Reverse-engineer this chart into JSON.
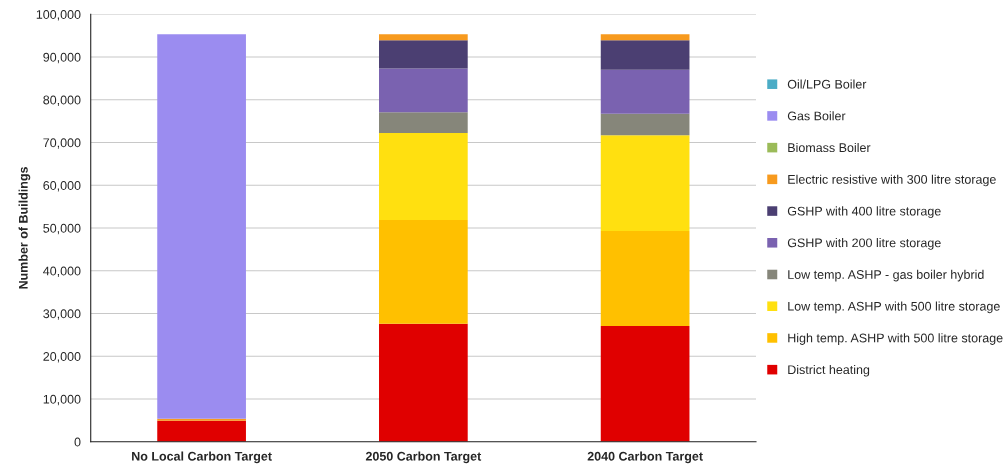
{
  "chart_data": {
    "type": "bar",
    "stacked": true,
    "ylabel": "Number of Buildings",
    "categories": [
      "No Local Carbon Target",
      "2050 Carbon Target",
      "2040 Carbon Target"
    ],
    "series": [
      {
        "name": "District heating",
        "color": "#e00000",
        "values": [
          4900,
          27600,
          27100
        ]
      },
      {
        "name": "High temp. ASHP with 500 litre storage",
        "color": "#ffc000",
        "values": [
          0,
          24300,
          22200
        ]
      },
      {
        "name": "Low temp. ASHP with 500 litre storage",
        "color": "#ffe010",
        "values": [
          0,
          20300,
          22400
        ]
      },
      {
        "name": "Low temp. ASHP - gas boiler hybrid",
        "color": "#86867a",
        "values": [
          0,
          4900,
          5000
        ]
      },
      {
        "name": "GSHP with 200 litre storage",
        "color": "#7a62b0",
        "values": [
          0,
          10200,
          10300
        ]
      },
      {
        "name": "GSHP with 400 litre storage",
        "color": "#4b3f72",
        "values": [
          0,
          6600,
          6900
        ]
      },
      {
        "name": "Electric resistive with 300 litre storage",
        "color": "#f79a1e",
        "values": [
          500,
          1400,
          1400
        ]
      },
      {
        "name": "Biomass Boiler",
        "color": "#9bbb59",
        "values": [
          0,
          0,
          0
        ]
      },
      {
        "name": "Gas Boiler",
        "color": "#9b8cf0",
        "values": [
          89900,
          0,
          0
        ]
      },
      {
        "name": "Oil/LPG Boiler",
        "color": "#4bacc6",
        "values": [
          0,
          0,
          0
        ]
      }
    ],
    "ylim": [
      0,
      100000
    ],
    "yticks": [
      {
        "value": 0,
        "label": "0"
      },
      {
        "value": 10000,
        "label": "10,000"
      },
      {
        "value": 20000,
        "label": "20,000"
      },
      {
        "value": 30000,
        "label": "30,000"
      },
      {
        "value": 40000,
        "label": "40,000"
      },
      {
        "value": 50000,
        "label": "50,000"
      },
      {
        "value": 60000,
        "label": "60,000"
      },
      {
        "value": 70000,
        "label": "70,000"
      },
      {
        "value": 80000,
        "label": "80,000"
      },
      {
        "value": 90000,
        "label": "90,000"
      },
      {
        "value": 100000,
        "label": "100,000"
      }
    ],
    "grid": "y",
    "legend": "right"
  }
}
